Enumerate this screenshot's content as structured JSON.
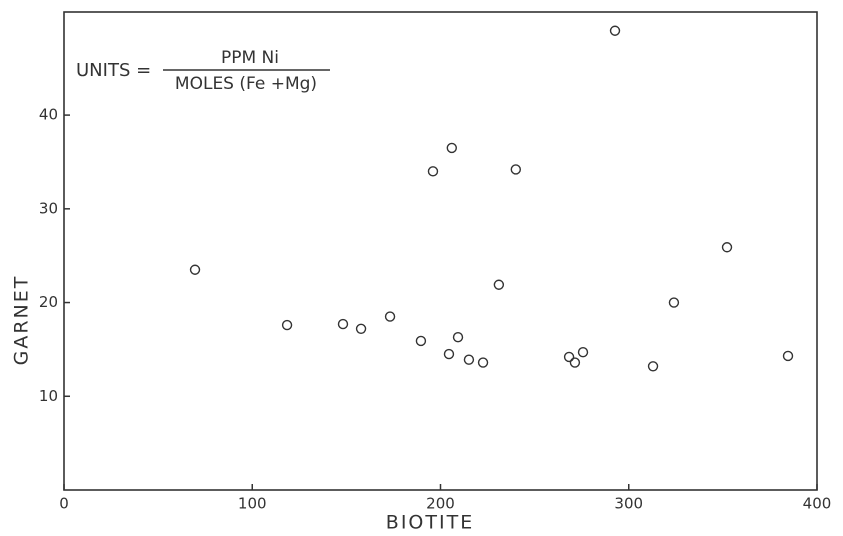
{
  "chart_data": {
    "type": "scatter",
    "x_label": "BIOTITE",
    "y_label": "GARNET",
    "annotation": {
      "prefix": "UNITS =",
      "numerator": "PPM Ni",
      "denominator": "MOLES (Fe +Mg)"
    },
    "x": [
      69.6,
      118.5,
      148.2,
      157.8,
      173.2,
      189.6,
      196,
      204.5,
      206,
      209.3,
      215.1,
      222.6,
      231,
      240,
      268.3,
      271.4,
      275.7,
      292.7,
      312.9,
      324,
      352.2,
      384.6
    ],
    "values": [
      23.5,
      17.6,
      17.7,
      17.2,
      18.5,
      15.9,
      34.0,
      14.5,
      36.5,
      16.3,
      13.9,
      13.6,
      21.9,
      34.2,
      14.2,
      13.6,
      14.7,
      49.0,
      13.2,
      20.0,
      25.9,
      14.3
    ],
    "color": "#333333",
    "xlim": [
      0,
      400
    ],
    "xticks": [
      0,
      100,
      200,
      300,
      400
    ],
    "ylim": [
      0,
      51
    ],
    "yticks": [
      10,
      20,
      30,
      40
    ],
    "grid": false
  }
}
